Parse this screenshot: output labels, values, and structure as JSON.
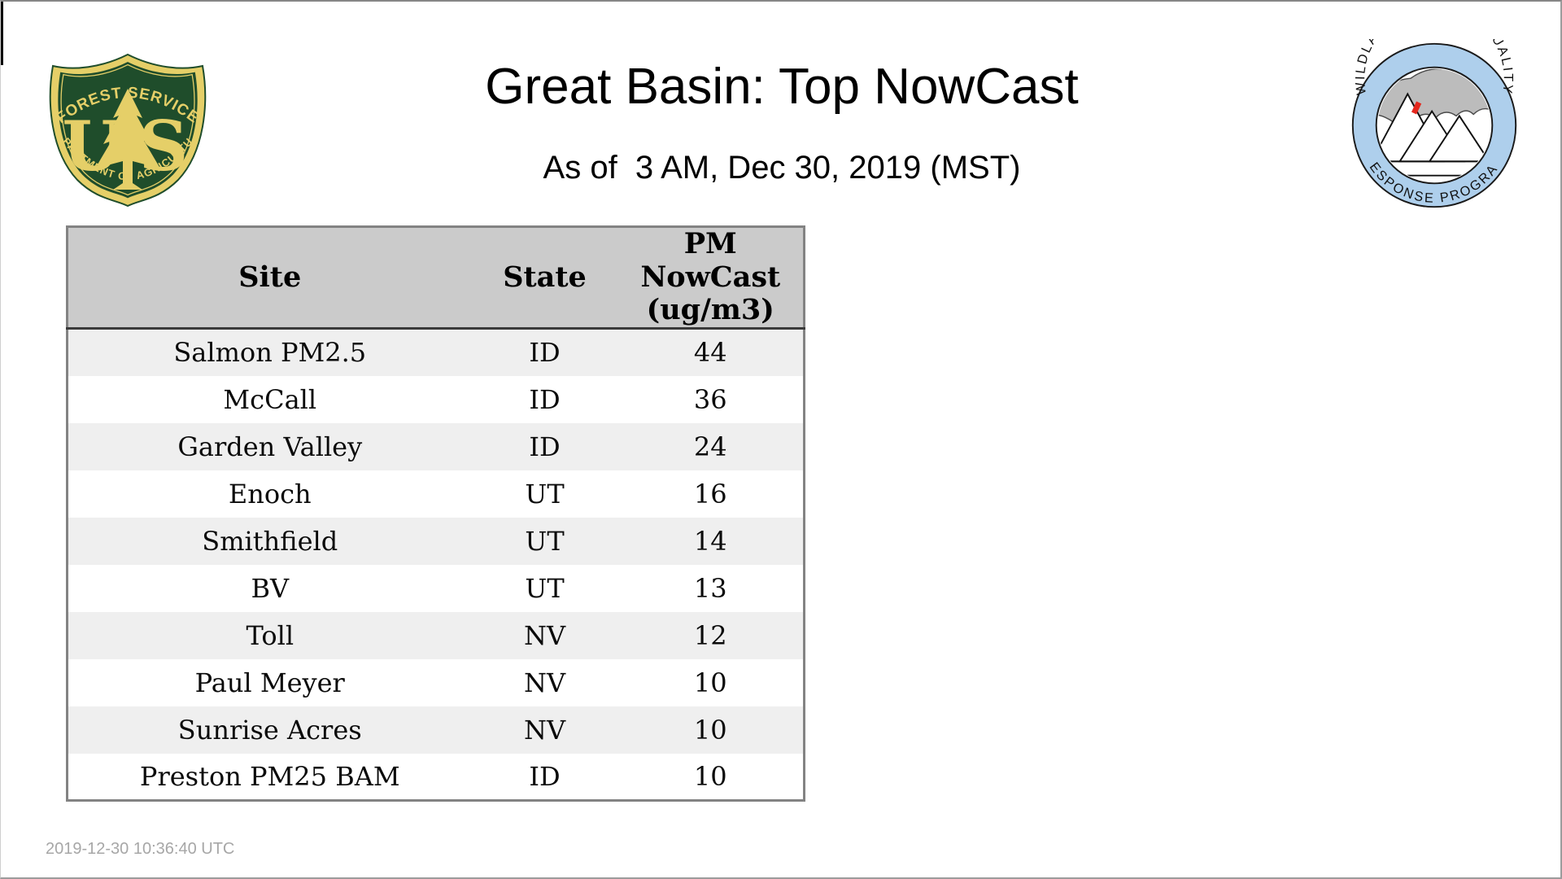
{
  "page": {
    "title": "Great Basin: Top NowCast",
    "subtitle": "As of  3 AM, Dec 30, 2019 (MST)",
    "footer_timestamp": "2019-12-30 10:36:40 UTC"
  },
  "logos": {
    "forest_service": {
      "top_text": "FOREST SERVICE",
      "letter_u": "U",
      "letter_s": "S",
      "bottom_text": "DEPARTMENT OF AGRICULTURE",
      "colors": {
        "green": "#1f4d2b",
        "gold": "#e5cf68"
      }
    },
    "wfaqrp": {
      "top_text": "WILDLAND FIRE • AIR QUALITY",
      "bottom_text": "RESPONSE PROGRAM",
      "colors": {
        "ring_blue": "#aecfec",
        "smoke_gray": "#bcbcbc",
        "flame_red": "#e4281e",
        "line_black": "#1a1a1a"
      }
    }
  },
  "table": {
    "columns": [
      {
        "label": "Site"
      },
      {
        "label": "State"
      },
      {
        "label": "PM\nNowCast\n(ug/m3)"
      }
    ],
    "rows": [
      {
        "site": "Salmon PM2.5",
        "state": "ID",
        "value": "44"
      },
      {
        "site": "McCall",
        "state": "ID",
        "value": "36"
      },
      {
        "site": "Garden Valley",
        "state": "ID",
        "value": "24"
      },
      {
        "site": "Enoch",
        "state": "UT",
        "value": "16"
      },
      {
        "site": "Smithfield",
        "state": "UT",
        "value": "14"
      },
      {
        "site": "BV",
        "state": "UT",
        "value": "13"
      },
      {
        "site": "Toll",
        "state": "NV",
        "value": "12"
      },
      {
        "site": "Paul Meyer",
        "state": "NV",
        "value": "10"
      },
      {
        "site": "Sunrise Acres",
        "state": "NV",
        "value": "10"
      },
      {
        "site": "Preston PM25 BAM",
        "state": "ID",
        "value": "10"
      }
    ],
    "colors": {
      "header_bg": "#cbcbcb",
      "stripe_bg": "#efefef",
      "outer_border": "#838383",
      "header_rule": "#3a3a3a"
    }
  }
}
